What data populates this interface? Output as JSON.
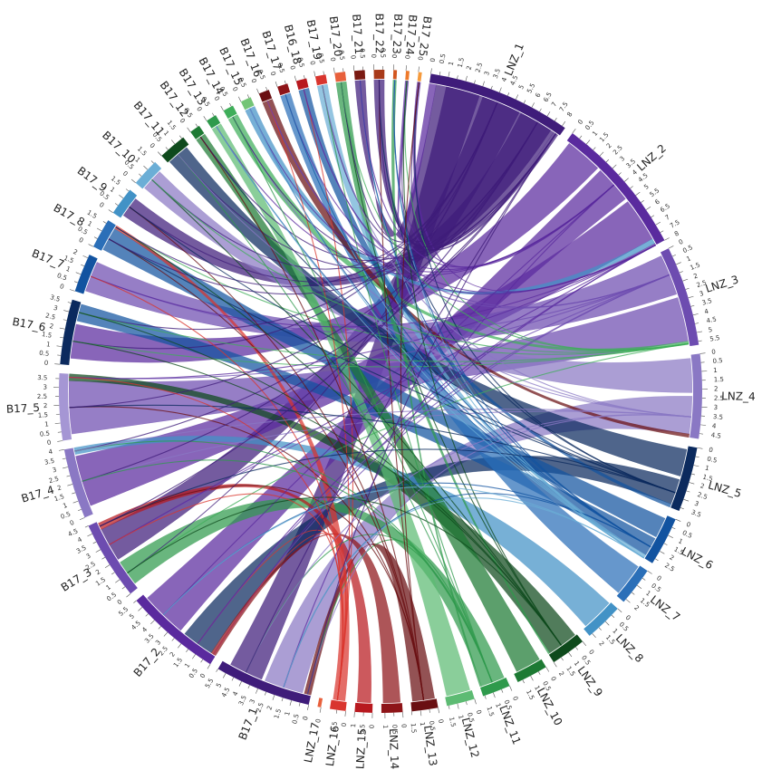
{
  "diagram": {
    "type": "circos",
    "segments": [
      {
        "label": "LNZ_1",
        "length": 8.2,
        "tick_step": 0.5,
        "color": "#3f1c7a"
      },
      {
        "label": "LNZ_2",
        "length": 8.0,
        "tick_step": 0.5,
        "color": "#5a2a9e"
      },
      {
        "label": "LNZ_3",
        "length": 5.7,
        "tick_step": 0.5,
        "color": "#6d4cb0"
      },
      {
        "label": "LNZ_4",
        "length": 4.8,
        "tick_step": 0.5,
        "color": "#8a78c4"
      },
      {
        "label": "LNZ_5",
        "length": 3.7,
        "tick_step": 0.5,
        "color": "#0b2a5e"
      },
      {
        "label": "LNZ_6",
        "length": 2.8,
        "tick_step": 0.5,
        "color": "#1253a0"
      },
      {
        "label": "LNZ_7",
        "length": 2.2,
        "tick_step": 0.5,
        "color": "#2b6fb8"
      },
      {
        "label": "LNZ_8",
        "length": 2.2,
        "tick_step": 0.5,
        "color": "#4292c6"
      },
      {
        "label": "LNZ_9",
        "length": 2.0,
        "tick_step": 0.5,
        "color": "#0e4a1c"
      },
      {
        "label": "LNZ_10",
        "length": 1.8,
        "tick_step": 0.5,
        "color": "#1d7a33"
      },
      {
        "label": "LNZ_11",
        "length": 1.6,
        "tick_step": 0.5,
        "color": "#2f9a4c"
      },
      {
        "label": "LNZ_12",
        "length": 1.6,
        "tick_step": 0.5,
        "color": "#5dbb73"
      },
      {
        "label": "LNZ_13",
        "length": 1.5,
        "tick_step": 0.5,
        "color": "#6a0f12"
      },
      {
        "label": "LNZ_14",
        "length": 1.2,
        "tick_step": 0.5,
        "color": "#8e1418"
      },
      {
        "label": "LNZ_15",
        "length": 1.0,
        "tick_step": 0.5,
        "color": "#b8191f"
      },
      {
        "label": "LNZ_16",
        "length": 0.9,
        "tick_step": 0.5,
        "color": "#d9352e"
      },
      {
        "label": "LNZ_17",
        "length": 0.2,
        "tick_step": 0.5,
        "color": "#e8603c"
      },
      {
        "label": "B17_1",
        "length": 5.5,
        "tick_step": 0.5,
        "color": "#3f1c7a"
      },
      {
        "label": "B17_2",
        "length": 5.5,
        "tick_step": 0.5,
        "color": "#5a2a9e"
      },
      {
        "label": "B17_3",
        "length": 4.5,
        "tick_step": 0.5,
        "color": "#6d4cb0"
      },
      {
        "label": "B17_4",
        "length": 4.0,
        "tick_step": 0.5,
        "color": "#8a78c4"
      },
      {
        "label": "B17_5",
        "length": 3.8,
        "tick_step": 0.5,
        "color": "#a596d4"
      },
      {
        "label": "B17_6",
        "length": 3.7,
        "tick_step": 0.5,
        "color": "#0b2a5e"
      },
      {
        "label": "B17_7",
        "length": 2.2,
        "tick_step": 0.5,
        "color": "#1253a0"
      },
      {
        "label": "B17_8",
        "length": 1.7,
        "tick_step": 0.5,
        "color": "#2b6fb8"
      },
      {
        "label": "B17_9",
        "length": 1.6,
        "tick_step": 0.5,
        "color": "#4292c6"
      },
      {
        "label": "B17_10",
        "length": 1.6,
        "tick_step": 0.5,
        "color": "#6baed6"
      },
      {
        "label": "B17_11",
        "length": 1.6,
        "tick_step": 0.5,
        "color": "#0e4a1c"
      },
      {
        "label": "B17_12",
        "length": 0.6,
        "tick_step": 0.5,
        "color": "#1d7a33"
      },
      {
        "label": "B17_13",
        "length": 0.6,
        "tick_step": 0.5,
        "color": "#2f9a4c"
      },
      {
        "label": "B17_14",
        "length": 0.6,
        "tick_step": 0.5,
        "color": "#3fae5a"
      },
      {
        "label": "B17_15",
        "length": 0.6,
        "tick_step": 0.5,
        "color": "#74c476"
      },
      {
        "label": "B17_16",
        "length": 0.6,
        "tick_step": 0.5,
        "color": "#6a0f12"
      },
      {
        "label": "B17_17",
        "length": 0.6,
        "tick_step": 0.5,
        "color": "#8e1418"
      },
      {
        "label": "B16_18",
        "length": 0.6,
        "tick_step": 0.5,
        "color": "#b8191f"
      },
      {
        "label": "B17_19",
        "length": 0.6,
        "tick_step": 0.5,
        "color": "#d9352e"
      },
      {
        "label": "B17_20",
        "length": 0.6,
        "tick_step": 0.5,
        "color": "#e8603c"
      },
      {
        "label": "B17_21",
        "length": 0.6,
        "tick_step": 0.5,
        "color": "#7a1a12"
      },
      {
        "label": "B17_22",
        "length": 0.6,
        "tick_step": 0.5,
        "color": "#a83a1a"
      },
      {
        "label": "B17_23",
        "length": 0.2,
        "tick_step": 0.5,
        "color": "#d2561f"
      },
      {
        "label": "B17_24",
        "length": 0.2,
        "tick_step": 0.5,
        "color": "#ee7a2b"
      },
      {
        "label": "B17_25",
        "length": 0.2,
        "tick_step": 0.5,
        "color": "#f59a3c"
      }
    ],
    "links": [
      {
        "from": "LNZ_1",
        "from_pos": [
          0.4,
          7.8
        ],
        "to": "B17_21",
        "to_pos": [
          0.0,
          0.6
        ],
        "color": "#3f1c7a"
      },
      {
        "from": "LNZ_1",
        "from_pos": [
          1.0,
          3.0
        ],
        "to": "B17_1",
        "to_pos": [
          3.0,
          5.0
        ],
        "color": "#3f1c7a"
      },
      {
        "from": "LNZ_1",
        "from_pos": [
          3.2,
          5.5
        ],
        "to": "B17_3",
        "to_pos": [
          2.0,
          4.0
        ],
        "color": "#3f1c7a"
      },
      {
        "from": "LNZ_1",
        "from_pos": [
          5.6,
          7.6
        ],
        "to": "B17_9",
        "to_pos": [
          0.2,
          1.4
        ],
        "color": "#3f1c7a"
      },
      {
        "from": "LNZ_2",
        "from_pos": [
          0.2,
          2.4
        ],
        "to": "B17_6",
        "to_pos": [
          0.4,
          2.4
        ],
        "color": "#5a2a9e"
      },
      {
        "from": "LNZ_2",
        "from_pos": [
          2.6,
          4.8
        ],
        "to": "B17_2",
        "to_pos": [
          2.5,
          5.2
        ],
        "color": "#5a2a9e"
      },
      {
        "from": "LNZ_2",
        "from_pos": [
          5.0,
          7.6
        ],
        "to": "B17_4",
        "to_pos": [
          0.5,
          3.5
        ],
        "color": "#5a2a9e"
      },
      {
        "from": "LNZ_3",
        "from_pos": [
          0.2,
          2.6
        ],
        "to": "B17_7",
        "to_pos": [
          0.2,
          2.0
        ],
        "color": "#6d4cb0"
      },
      {
        "from": "LNZ_3",
        "from_pos": [
          2.8,
          5.4
        ],
        "to": "B17_5",
        "to_pos": [
          0.3,
          3.4
        ],
        "color": "#6d4cb0"
      },
      {
        "from": "LNZ_4",
        "from_pos": [
          0.2,
          2.2
        ],
        "to": "B17_10",
        "to_pos": [
          0.1,
          1.4
        ],
        "color": "#8a78c4"
      },
      {
        "from": "LNZ_4",
        "from_pos": [
          2.4,
          4.6
        ],
        "to": "B17_1",
        "to_pos": [
          0.5,
          2.8
        ],
        "color": "#8a78c4"
      },
      {
        "from": "LNZ_5",
        "from_pos": [
          0.2,
          1.8
        ],
        "to": "B17_11",
        "to_pos": [
          0.1,
          1.4
        ],
        "color": "#0b2a5e"
      },
      {
        "from": "LNZ_5",
        "from_pos": [
          2.0,
          3.5
        ],
        "to": "B17_2",
        "to_pos": [
          0.3,
          2.2
        ],
        "color": "#0b2a5e"
      },
      {
        "from": "LNZ_6",
        "from_pos": [
          0.2,
          1.4
        ],
        "to": "B17_8",
        "to_pos": [
          0.1,
          1.5
        ],
        "color": "#1253a0"
      },
      {
        "from": "LNZ_6",
        "from_pos": [
          1.5,
          2.6
        ],
        "to": "B17_6",
        "to_pos": [
          2.6,
          3.6
        ],
        "color": "#1253a0"
      },
      {
        "from": "LNZ_7",
        "from_pos": [
          0.1,
          2.0
        ],
        "to": "B17_17",
        "to_pos": [
          0.0,
          0.6
        ],
        "color": "#2b6fb8"
      },
      {
        "from": "LNZ_8",
        "from_pos": [
          0.1,
          2.0
        ],
        "to": "B17_4",
        "to_pos": [
          3.6,
          4.0
        ],
        "color": "#4292c6"
      },
      {
        "from": "LNZ_9",
        "from_pos": [
          0.1,
          1.9
        ],
        "to": "B17_5",
        "to_pos": [
          3.4,
          3.8
        ],
        "color": "#0e4a1c"
      },
      {
        "from": "LNZ_10",
        "from_pos": [
          0.1,
          1.6
        ],
        "to": "B17_12",
        "to_pos": [
          0.0,
          0.6
        ],
        "color": "#1d7a33"
      },
      {
        "from": "LNZ_11",
        "from_pos": [
          0.1,
          1.5
        ],
        "to": "B17_3",
        "to_pos": [
          0.3,
          1.8
        ],
        "color": "#2f9a4c"
      },
      {
        "from": "LNZ_12",
        "from_pos": [
          0.1,
          1.5
        ],
        "to": "B17_13",
        "to_pos": [
          0.0,
          0.6
        ],
        "color": "#5dbb73"
      },
      {
        "from": "LNZ_13",
        "from_pos": [
          0.1,
          1.4
        ],
        "to": "B17_1",
        "to_pos": [
          0.0,
          0.4
        ],
        "color": "#6a0f12"
      },
      {
        "from": "LNZ_14",
        "from_pos": [
          0.1,
          1.1
        ],
        "to": "B17_2",
        "to_pos": [
          0.0,
          0.3
        ],
        "color": "#8e1418"
      },
      {
        "from": "LNZ_15",
        "from_pos": [
          0.1,
          0.9
        ],
        "to": "B17_3",
        "to_pos": [
          4.0,
          4.4
        ],
        "color": "#b8191f"
      },
      {
        "from": "LNZ_16",
        "from_pos": [
          0.1,
          0.8
        ],
        "to": "B17_8",
        "to_pos": [
          1.5,
          1.7
        ],
        "color": "#d9352e"
      },
      {
        "from": "LNZ_2",
        "from_pos": [
          7.6,
          7.9
        ],
        "to": "B17_15",
        "to_pos": [
          0.0,
          0.6
        ],
        "color": "#4292c6"
      },
      {
        "from": "LNZ_3",
        "from_pos": [
          5.4,
          5.6
        ],
        "to": "B17_14",
        "to_pos": [
          0.0,
          0.6
        ],
        "color": "#3fae5a"
      },
      {
        "from": "LNZ_4",
        "from_pos": [
          4.6,
          4.8
        ],
        "to": "B17_16",
        "to_pos": [
          0.0,
          0.6
        ],
        "color": "#6a0f12"
      },
      {
        "from": "LNZ_1",
        "from_pos": [
          7.8,
          8.1
        ],
        "to": "B17_22",
        "to_pos": [
          0.0,
          0.6
        ],
        "color": "#3f1c7a"
      },
      {
        "from": "LNZ_9",
        "from_pos": [
          1.9,
          2.0
        ],
        "to": "B17_20",
        "to_pos": [
          0.0,
          0.6
        ],
        "color": "#2f9a4c"
      },
      {
        "from": "LNZ_11",
        "from_pos": [
          1.5,
          1.6
        ],
        "to": "B17_23",
        "to_pos": [
          0.0,
          0.2
        ],
        "color": "#2f9a4c"
      },
      {
        "from": "LNZ_6",
        "from_pos": [
          2.6,
          2.8
        ],
        "to": "B17_19",
        "to_pos": [
          0.0,
          0.6
        ],
        "color": "#6baed6"
      },
      {
        "from": "LNZ_5",
        "from_pos": [
          3.5,
          3.7
        ],
        "to": "B16_18",
        "to_pos": [
          0.0,
          0.6
        ],
        "color": "#1253a0"
      },
      {
        "from": "LNZ_2",
        "from_pos": [
          7.9,
          8.0
        ],
        "to": "B17_25",
        "to_pos": [
          0.0,
          0.2
        ],
        "color": "#5a2a9e"
      },
      {
        "from": "LNZ_1",
        "from_pos": [
          0.0,
          0.4
        ],
        "to": "B17_24",
        "to_pos": [
          0.0,
          0.2
        ],
        "color": "#5a2a9e"
      }
    ]
  }
}
